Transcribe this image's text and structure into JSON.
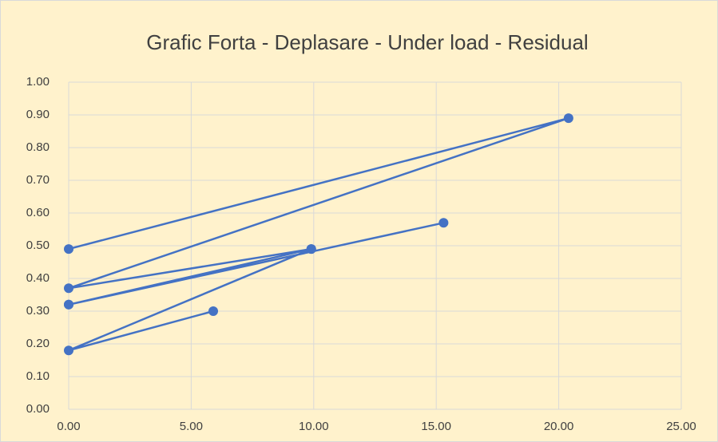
{
  "chart_data": {
    "type": "scatter",
    "title": "Grafic Forta - Deplasare - Under load - Residual",
    "x": [
      5.9,
      0,
      9.9,
      0,
      15.3,
      0,
      9.9,
      0,
      20.4,
      0
    ],
    "values": [
      0.3,
      0.18,
      0.49,
      0.32,
      0.57,
      0.32,
      0.49,
      0.37,
      0.89,
      0.49
    ],
    "color": "#4472c4",
    "xlim": [
      0,
      25
    ],
    "xticks": [
      {
        "value": 0,
        "label": "0.00"
      },
      {
        "value": 5,
        "label": "5.00"
      },
      {
        "value": 10,
        "label": "10.00"
      },
      {
        "value": 15,
        "label": "15.00"
      },
      {
        "value": 20,
        "label": "20.00"
      },
      {
        "value": 25,
        "label": "25.00"
      }
    ],
    "ylim": [
      0,
      1
    ],
    "yticks": [
      {
        "value": 0,
        "label": "0.00"
      },
      {
        "value": 0.1,
        "label": "0.10"
      },
      {
        "value": 0.2,
        "label": "0.20"
      },
      {
        "value": 0.3,
        "label": "0.30"
      },
      {
        "value": 0.4,
        "label": "0.40"
      },
      {
        "value": 0.5,
        "label": "0.50"
      },
      {
        "value": 0.6,
        "label": "0.60"
      },
      {
        "value": 0.7,
        "label": "0.70"
      },
      {
        "value": 0.8,
        "label": "0.80"
      },
      {
        "value": 0.9,
        "label": "0.90"
      },
      {
        "value": 1,
        "label": "1.00"
      }
    ],
    "grid": true
  }
}
